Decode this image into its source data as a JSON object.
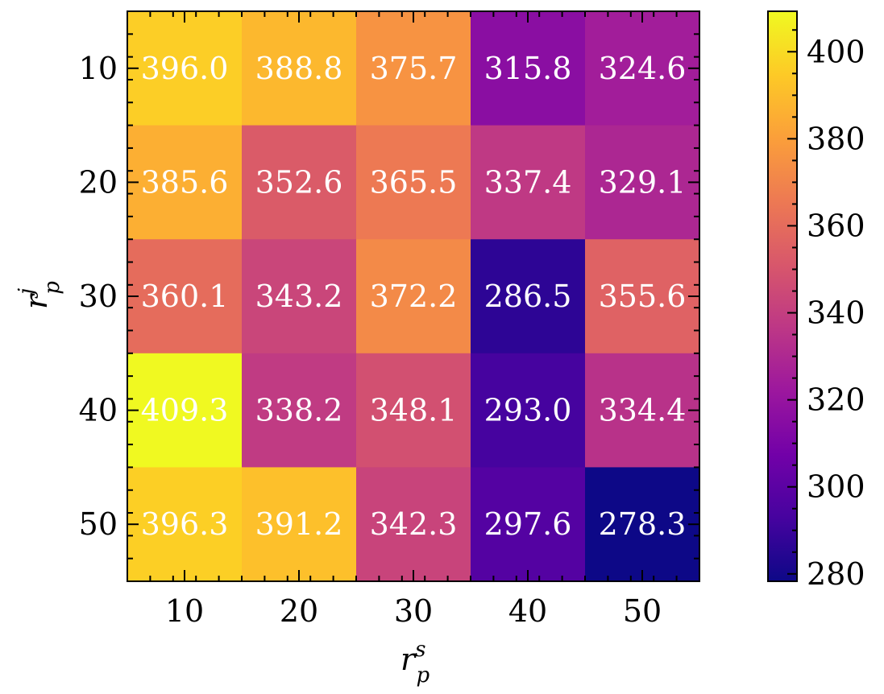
{
  "chart_data": {
    "type": "heatmap",
    "title": "",
    "xlabel": {
      "base": "r",
      "sub": "p",
      "sup": "s"
    },
    "ylabel": {
      "base": "r",
      "sub": "p",
      "sup": "j"
    },
    "x_categories": [
      "10",
      "20",
      "30",
      "40",
      "50"
    ],
    "y_categories": [
      "10",
      "20",
      "30",
      "40",
      "50"
    ],
    "values": [
      [
        396.0,
        388.8,
        375.7,
        315.8,
        324.6
      ],
      [
        385.6,
        352.6,
        365.5,
        337.4,
        329.1
      ],
      [
        360.1,
        343.2,
        372.2,
        286.5,
        355.6
      ],
      [
        409.3,
        338.2,
        348.1,
        293.0,
        334.4
      ],
      [
        396.3,
        391.2,
        342.3,
        297.6,
        278.3
      ]
    ],
    "value_labels": [
      [
        "396.0",
        "388.8",
        "375.7",
        "315.8",
        "324.6"
      ],
      [
        "385.6",
        "352.6",
        "365.5",
        "337.4",
        "329.1"
      ],
      [
        "360.1",
        "343.2",
        "372.2",
        "286.5",
        "355.6"
      ],
      [
        "409.3",
        "338.2",
        "348.1",
        "293.0",
        "334.4"
      ],
      [
        "396.3",
        "391.2",
        "342.3",
        "297.6",
        "278.3"
      ]
    ],
    "colormap": "plasma",
    "colorbar": {
      "vmin": 278.3,
      "vmax": 409.3,
      "ticks": [
        280,
        300,
        320,
        340,
        360,
        380,
        400
      ],
      "tick_labels": [
        "280",
        "300",
        "320",
        "340",
        "360",
        "380",
        "400"
      ]
    }
  },
  "colors": {
    "cell_text": "#ffffff",
    "axis": "#000000",
    "plasma_stops": [
      "#0d0887",
      "#46039f",
      "#7201a8",
      "#9c179e",
      "#bd3786",
      "#d8576b",
      "#ed7953",
      "#fb9f3a",
      "#fdca26",
      "#f0f921"
    ]
  }
}
